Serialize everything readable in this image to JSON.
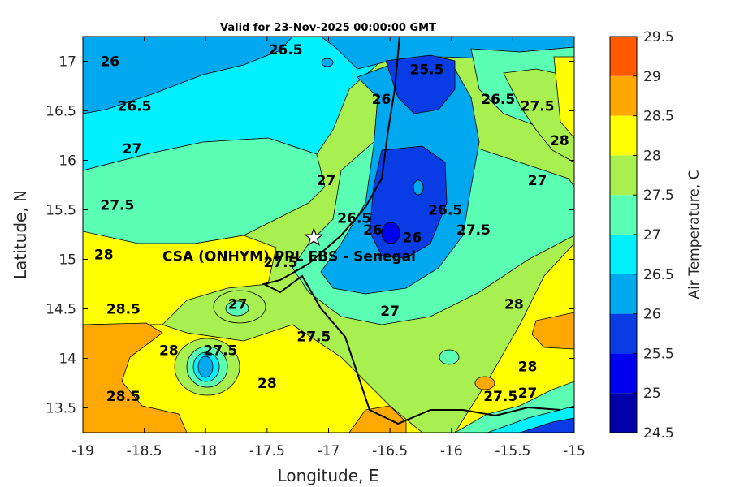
{
  "chart_data": {
    "type": "heatmap",
    "title": "Valid for 23-Nov-2025 00:00:00 GMT",
    "xlabel": "Longitude, E",
    "ylabel": "Latitude, N",
    "xlim": [
      -19,
      -15
    ],
    "ylim": [
      13.25,
      17.25
    ],
    "xticks": [
      "-19",
      "-18.5",
      "-18",
      "-17.5",
      "-17",
      "-16.5",
      "-16",
      "-15.5",
      "-15"
    ],
    "yticks": [
      "13.5",
      "14",
      "14.5",
      "15",
      "15.5",
      "16",
      "16.5",
      "17"
    ],
    "colorbar": {
      "label": "Air Temperature, C",
      "levels": [
        "24.5",
        "25",
        "25.5",
        "26",
        "26.5",
        "27",
        "27.5",
        "28",
        "28.5",
        "29",
        "29.5"
      ],
      "colors": [
        "#0000a8",
        "#0000f0",
        "#0a3ce6",
        "#00a8f0",
        "#00f0ff",
        "#5affb4",
        "#a8f050",
        "#ffff00",
        "#ffa800",
        "#ff5a00",
        "#ff0000"
      ]
    },
    "station": {
      "name": "CSA (ONHYM) PPL EBS  - Senegal",
      "lon": -17.12,
      "lat": 15.22
    },
    "contour_labels": [
      {
        "text": "26",
        "lon": -18.78,
        "lat": 17.0
      },
      {
        "text": "26.5",
        "lon": -17.35,
        "lat": 17.12
      },
      {
        "text": "25.5",
        "lon": -16.2,
        "lat": 16.92
      },
      {
        "text": "26",
        "lon": -16.57,
        "lat": 16.62
      },
      {
        "text": "26.5",
        "lon": -15.62,
        "lat": 16.62
      },
      {
        "text": "27.5",
        "lon": -15.3,
        "lat": 16.55
      },
      {
        "text": "28",
        "lon": -15.12,
        "lat": 16.2
      },
      {
        "text": "26.5",
        "lon": -18.58,
        "lat": 16.55
      },
      {
        "text": "27",
        "lon": -18.6,
        "lat": 16.12
      },
      {
        "text": "27",
        "lon": -15.3,
        "lat": 15.8
      },
      {
        "text": "27",
        "lon": -17.02,
        "lat": 15.8
      },
      {
        "text": "27.5",
        "lon": -18.72,
        "lat": 15.55
      },
      {
        "text": "26.5",
        "lon": -16.79,
        "lat": 15.42
      },
      {
        "text": "26",
        "lon": -16.64,
        "lat": 15.3
      },
      {
        "text": "26.5",
        "lon": -16.05,
        "lat": 15.5
      },
      {
        "text": "27.5",
        "lon": -15.82,
        "lat": 15.3
      },
      {
        "text": "26",
        "lon": -16.32,
        "lat": 15.22
      },
      {
        "text": "28",
        "lon": -18.83,
        "lat": 15.05
      },
      {
        "text": "27.5",
        "lon": -17.39,
        "lat": 14.97
      },
      {
        "text": "28.5",
        "lon": -18.67,
        "lat": 14.5
      },
      {
        "text": "27",
        "lon": -17.74,
        "lat": 14.55
      },
      {
        "text": "27",
        "lon": -16.5,
        "lat": 14.48
      },
      {
        "text": "28",
        "lon": -15.49,
        "lat": 14.55
      },
      {
        "text": "27.5",
        "lon": -17.12,
        "lat": 14.22
      },
      {
        "text": "27.5",
        "lon": -17.88,
        "lat": 14.08
      },
      {
        "text": "28",
        "lon": -18.3,
        "lat": 14.08
      },
      {
        "text": "28",
        "lon": -17.5,
        "lat": 13.75
      },
      {
        "text": "28",
        "lon": -15.38,
        "lat": 13.92
      },
      {
        "text": "27.5",
        "lon": -15.6,
        "lat": 13.62
      },
      {
        "text": "27",
        "lon": -15.38,
        "lat": 13.65
      },
      {
        "text": "28.5",
        "lon": -18.67,
        "lat": 13.62
      }
    ]
  }
}
